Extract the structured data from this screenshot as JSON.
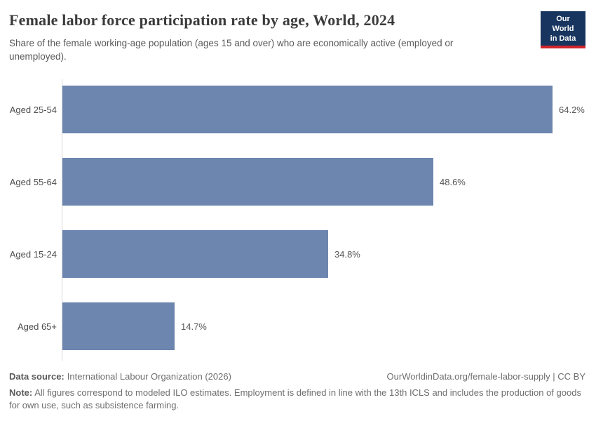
{
  "header": {
    "title": "Female labor force participation rate by age, World, 2024",
    "subtitle": "Share of the female working-age population (ages 15 and over) who are economically active (employed or unemployed)."
  },
  "logo": {
    "line1": "Our World",
    "line2": "in Data"
  },
  "chart_data": {
    "type": "bar",
    "orientation": "horizontal",
    "title": "Female labor force participation rate by age, World, 2024",
    "subtitle": "Share of the female working-age population (ages 15 and over) who are economically active (employed or unemployed).",
    "categories": [
      "Aged 25-54",
      "Aged 55-64",
      "Aged 15-24",
      "Aged 65+"
    ],
    "values": [
      64.2,
      48.6,
      34.8,
      14.7
    ],
    "value_labels": [
      "64.2%",
      "48.6%",
      "34.8%",
      "14.7%"
    ],
    "unit": "%",
    "xlabel": "",
    "ylabel": "",
    "xlim": [
      0,
      68.8
    ],
    "grid": false,
    "legend": false,
    "bar_color": "#6d86af"
  },
  "footer": {
    "source_label": "Data source:",
    "source_text": "International Labour Organization (2026)",
    "link": "OurWorldinData.org/female-labor-supply | CC BY",
    "note_label": "Note:",
    "note_text": "All figures correspond to modeled ILO estimates. Employment is defined in line with the 13th ICLS and includes the production of goods for own use, such as subsistence farming."
  },
  "colors": {
    "bar": "#6d86af",
    "logo_bg": "#17355e",
    "logo_accent": "#d0252c",
    "axis_line": "#dadada"
  }
}
